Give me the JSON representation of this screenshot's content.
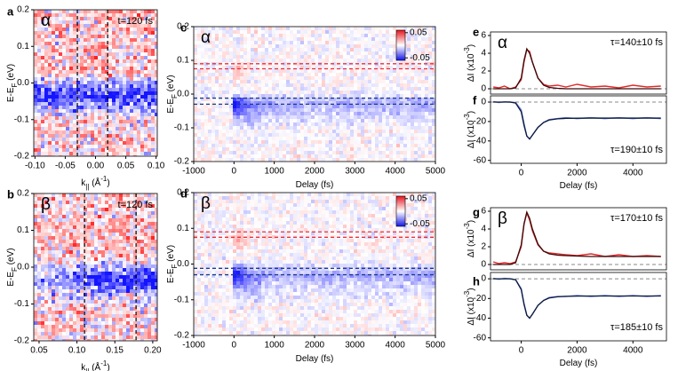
{
  "chart_data": [
    {
      "type": "heatmap",
      "panel": "a",
      "annotation": "α",
      "time": "t=120 fs",
      "kind": "k",
      "xlabel": {
        "text": "k",
        "sub": "||",
        "unit": " (Å",
        "sup": "-1",
        "end": ")"
      },
      "ylabel": {
        "text": "E-E",
        "sub": "F",
        "unit": " (eV)"
      },
      "xlim": [
        -0.102,
        0.102
      ],
      "ylim": [
        -0.2,
        0.2
      ],
      "xticks": [
        {
          "value": -0.1,
          "label": "-0.10"
        },
        -0.05,
        {
          "value": 0,
          "label": "0.00"
        },
        0.05,
        {
          "value": 0.1,
          "label": "0.10"
        }
      ],
      "yticks": [
        -0.2,
        -0.1,
        {
          "value": 0,
          "label": "0.0"
        },
        0.1,
        0.2
      ],
      "vlines": [
        -0.03,
        0.02
      ]
    },
    {
      "type": "heatmap",
      "panel": "b",
      "annotation": "β",
      "time": "t=120 fs",
      "kind": "k2",
      "xlabel": {
        "text": "k",
        "sub": "||",
        "unit": " (Å",
        "sup": "-1",
        "end": ")"
      },
      "ylabel": {
        "text": "E-E",
        "sub": "F",
        "unit": " (eV)"
      },
      "xlim": [
        0.043,
        0.206
      ],
      "ylim": [
        -0.2,
        0.2
      ],
      "xticks": [
        0.05,
        {
          "value": 0.1,
          "label": "0.10"
        },
        0.15,
        {
          "value": 0.2,
          "label": "0.20"
        }
      ],
      "yticks": [
        -0.2,
        -0.1,
        {
          "value": 0,
          "label": "0.0"
        },
        0.1,
        0.2
      ],
      "vlines": [
        0.11,
        0.178
      ]
    },
    {
      "type": "heatmap",
      "panel": "c",
      "annotation": "α",
      "kind": "t",
      "xlabel": {
        "text": "Delay (fs)"
      },
      "ylabel": {
        "text": "E-E",
        "sub": "F",
        "unit": " (eV)"
      },
      "xlim": [
        -1000,
        5000
      ],
      "ylim": [
        -0.2,
        0.2
      ],
      "xticks": [
        -1000,
        0,
        1000,
        2000,
        3000,
        4000,
        5000
      ],
      "yticks": [
        -0.2,
        -0.1,
        {
          "value": 0,
          "label": "0.0"
        },
        0.1,
        0.2
      ],
      "hlines": [
        {
          "value": 0.09,
          "color": "#e8303a"
        },
        {
          "value": 0.075,
          "color": "#e8303a"
        },
        {
          "value": -0.012,
          "color": "#1a3a8c"
        },
        {
          "value": -0.03,
          "color": "#1a3a8c"
        }
      ],
      "colorbar": {
        "lim": [
          -0.06,
          0.06
        ],
        "ticks": [
          0.05,
          -0.05
        ]
      }
    },
    {
      "type": "heatmap",
      "panel": "d",
      "annotation": "β",
      "kind": "t",
      "xlabel": {
        "text": "Delay (fs)"
      },
      "ylabel": {
        "text": "E-E",
        "sub": "F",
        "unit": " (eV)"
      },
      "xlim": [
        -1000,
        5000
      ],
      "ylim": [
        -0.2,
        0.2
      ],
      "xticks": [
        -1000,
        0,
        1000,
        2000,
        3000,
        4000,
        5000
      ],
      "yticks": [
        -0.2,
        -0.1,
        {
          "value": 0,
          "label": "0.0"
        },
        0.1,
        0.2
      ],
      "hlines": [
        {
          "value": 0.09,
          "color": "#e8303a"
        },
        {
          "value": 0.075,
          "color": "#e8303a"
        },
        {
          "value": -0.012,
          "color": "#1a3a8c"
        },
        {
          "value": -0.03,
          "color": "#1a3a8c"
        }
      ],
      "colorbar": {
        "lim": [
          -0.06,
          0.06
        ],
        "ticks": [
          0.05,
          -0.05
        ]
      }
    },
    {
      "type": "line",
      "panel": "e",
      "annotation": "α",
      "tau": "τ=140±10 fs",
      "ylabel": {
        "text": "ΔI (x10",
        "sup": "-3",
        "end": ")"
      },
      "xlim": [
        -1100,
        5200
      ],
      "ylim": [
        -0.6,
        6.4
      ],
      "yticks": [
        0,
        2,
        4,
        6
      ],
      "hlines": [
        {
          "value": 0,
          "color": "#888888"
        }
      ],
      "x": [
        -1000,
        -800,
        -600,
        -400,
        -200,
        0,
        100,
        200,
        300,
        400,
        600,
        800,
        1000,
        1300,
        1600,
        2000,
        2500,
        3000,
        3500,
        4000,
        4500,
        5000
      ],
      "series": [
        {
          "color": "#e02a2a",
          "values": [
            0.2,
            0.1,
            0.3,
            0.0,
            0.2,
            1.0,
            3.0,
            4.4,
            4.2,
            3.0,
            1.2,
            0.5,
            0.3,
            0.4,
            0.2,
            0.5,
            0.2,
            0.3,
            0.1,
            0.4,
            0.2,
            0.3
          ]
        },
        {
          "color": "#3a0a0a",
          "values": [
            0,
            0,
            0,
            0,
            0.1,
            1.2,
            3.2,
            4.5,
            4.0,
            3.0,
            1.2,
            0.4,
            0.15,
            0.05,
            0,
            0,
            0,
            0,
            0,
            0,
            0,
            0
          ]
        }
      ]
    },
    {
      "type": "line",
      "panel": "f",
      "tau": "τ=190±10 fs",
      "taupos": "bottom",
      "ylabel": {
        "text": "ΔI (x10",
        "sup": "-3",
        "end": ")"
      },
      "xlabel": {
        "text": "Delay (fs)"
      },
      "xlim": [
        -1100,
        5200
      ],
      "ylim": [
        -63,
        6.4
      ],
      "yticks": [
        0,
        -20,
        -40,
        -60
      ],
      "xticks": [
        0,
        2000,
        4000
      ],
      "hlines": [
        {
          "value": 0,
          "color": "#888888"
        }
      ],
      "x": [
        -1000,
        -800,
        -600,
        -400,
        -200,
        0,
        100,
        200,
        300,
        400,
        600,
        800,
        1000,
        1300,
        1600,
        2000,
        2500,
        3000,
        3500,
        4000,
        4500,
        5000
      ],
      "series": [
        {
          "color": "#6a78d8",
          "values": [
            0.5,
            -0.5,
            0.3,
            0,
            -0.5,
            -8,
            -22,
            -35,
            -38,
            -34,
            -26,
            -21,
            -18,
            -17,
            -16,
            -17,
            -16,
            -17,
            -16,
            -17,
            -16,
            -17
          ]
        },
        {
          "color": "#0a1a3a",
          "values": [
            0,
            0,
            0,
            0,
            -1,
            -10,
            -24,
            -35,
            -38,
            -34,
            -26,
            -21,
            -18.5,
            -17.2,
            -16.8,
            -16.6,
            -16.5,
            -16.5,
            -16.5,
            -16.5,
            -16.5,
            -16.5
          ]
        }
      ]
    },
    {
      "type": "line",
      "panel": "g",
      "annotation": "β",
      "tau": "τ=170±10 fs",
      "ylabel": {
        "text": "ΔI (x10",
        "sup": "-3",
        "end": ")"
      },
      "xlim": [
        -1100,
        5200
      ],
      "ylim": [
        -0.6,
        6.4
      ],
      "yticks": [
        0,
        2,
        4,
        6
      ],
      "hlines": [
        {
          "value": 0,
          "color": "#888888"
        }
      ],
      "x": [
        -1000,
        -800,
        -600,
        -400,
        -200,
        0,
        100,
        200,
        300,
        400,
        600,
        800,
        1000,
        1300,
        1600,
        2000,
        2500,
        3000,
        3500,
        4000,
        4500,
        5000
      ],
      "series": [
        {
          "color": "#e02a2a",
          "values": [
            0.3,
            0.1,
            0.2,
            0.1,
            0.3,
            2.0,
            4.5,
            5.8,
            5.0,
            3.8,
            2.2,
            1.5,
            1.3,
            1.2,
            1.1,
            1.0,
            1.2,
            0.9,
            1.1,
            0.9,
            1.0,
            0.9
          ]
        },
        {
          "color": "#3a0a0a",
          "values": [
            0,
            0,
            0,
            0,
            0.2,
            2.2,
            4.6,
            5.9,
            5.2,
            4.0,
            2.3,
            1.5,
            1.2,
            1.05,
            1.0,
            0.95,
            0.9,
            0.9,
            0.9,
            0.9,
            0.9,
            0.9
          ]
        }
      ]
    },
    {
      "type": "line",
      "panel": "h",
      "tau": "τ=185±10 fs",
      "taupos": "bottom",
      "ylabel": {
        "text": "ΔI (x10",
        "sup": "-3",
        "end": ")"
      },
      "xlabel": {
        "text": "Delay (fs)"
      },
      "xlim": [
        -1100,
        5200
      ],
      "ylim": [
        -63,
        6.4
      ],
      "yticks": [
        0,
        -20,
        -40,
        -60
      ],
      "xticks": [
        0,
        2000,
        4000
      ],
      "hlines": [
        {
          "value": 0,
          "color": "#888888"
        }
      ],
      "x": [
        -1000,
        -800,
        -600,
        -400,
        -200,
        0,
        100,
        200,
        300,
        400,
        600,
        800,
        1000,
        1300,
        1600,
        2000,
        2500,
        3000,
        3500,
        4000,
        4500,
        5000
      ],
      "series": [
        {
          "color": "#6a78d8",
          "values": [
            0.5,
            -0.5,
            0.5,
            0,
            -1,
            -10,
            -25,
            -37,
            -40,
            -36,
            -27,
            -22,
            -19,
            -18,
            -18,
            -17,
            -18,
            -17,
            -18,
            -17,
            -18,
            -17
          ]
        },
        {
          "color": "#0a1a3a",
          "values": [
            0,
            0,
            0,
            0,
            -1,
            -11,
            -26,
            -37,
            -40,
            -36,
            -27,
            -22,
            -19.5,
            -18.3,
            -17.8,
            -17.6,
            -17.5,
            -17.5,
            -17.5,
            -17.5,
            -17.5,
            -17.5
          ]
        }
      ]
    }
  ]
}
